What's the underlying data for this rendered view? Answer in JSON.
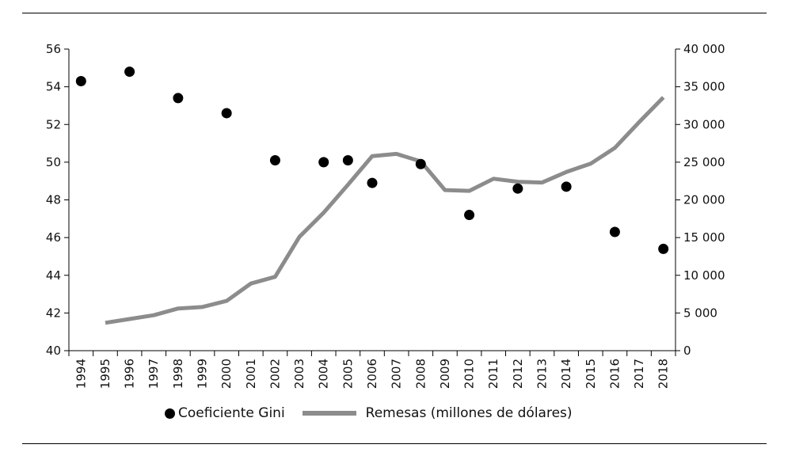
{
  "chart_data": {
    "type": "line",
    "title": "",
    "x": [
      "1994",
      "1995",
      "1996",
      "1997",
      "1998",
      "1999",
      "2000",
      "2001",
      "2002",
      "2003",
      "2004",
      "2005",
      "2006",
      "2007",
      "2008",
      "2009",
      "2010",
      "2011",
      "2012",
      "2013",
      "2014",
      "2015",
      "2016",
      "2017",
      "2018"
    ],
    "y_left": {
      "min": 40,
      "max": 56,
      "ticks": [
        "40",
        "42",
        "44",
        "46",
        "48",
        "50",
        "52",
        "54",
        "56"
      ]
    },
    "y_right": {
      "min": 0,
      "max": 40000,
      "ticks": [
        "0",
        "5 000",
        "10 000",
        "15 000",
        "20 000",
        "25 000",
        "30 000",
        "35 000",
        "40 000"
      ]
    },
    "series": [
      {
        "name": "Coeficiente Gini",
        "type": "scatter",
        "axis": "left",
        "color": "#000000",
        "points": [
          {
            "x": "1994",
            "y": 54.3
          },
          {
            "x": "1996",
            "y": 54.8
          },
          {
            "x": "1998",
            "y": 53.4
          },
          {
            "x": "2000",
            "y": 52.6
          },
          {
            "x": "2002",
            "y": 50.1
          },
          {
            "x": "2004",
            "y": 50.0
          },
          {
            "x": "2005",
            "y": 50.1
          },
          {
            "x": "2006",
            "y": 48.9
          },
          {
            "x": "2008",
            "y": 49.9
          },
          {
            "x": "2010",
            "y": 47.2
          },
          {
            "x": "2012",
            "y": 48.6
          },
          {
            "x": "2014",
            "y": 48.7
          },
          {
            "x": "2016",
            "y": 46.3
          },
          {
            "x": "2018",
            "y": 45.4
          }
        ]
      },
      {
        "name": "Remesas (millones de dólares)",
        "type": "line",
        "axis": "right",
        "color": "#8c8c8c",
        "points": [
          {
            "x": "1995",
            "y": 3700
          },
          {
            "x": "1996",
            "y": 4200
          },
          {
            "x": "1997",
            "y": 4700
          },
          {
            "x": "1998",
            "y": 5600
          },
          {
            "x": "1999",
            "y": 5800
          },
          {
            "x": "2000",
            "y": 6600
          },
          {
            "x": "2001",
            "y": 8900
          },
          {
            "x": "2002",
            "y": 9800
          },
          {
            "x": "2003",
            "y": 15100
          },
          {
            "x": "2004",
            "y": 18300
          },
          {
            "x": "2005",
            "y": 22000
          },
          {
            "x": "2006",
            "y": 25800
          },
          {
            "x": "2007",
            "y": 26100
          },
          {
            "x": "2008",
            "y": 25100
          },
          {
            "x": "2009",
            "y": 21300
          },
          {
            "x": "2010",
            "y": 21200
          },
          {
            "x": "2011",
            "y": 22800
          },
          {
            "x": "2012",
            "y": 22400
          },
          {
            "x": "2013",
            "y": 22300
          },
          {
            "x": "2014",
            "y": 23700
          },
          {
            "x": "2015",
            "y": 24800
          },
          {
            "x": "2016",
            "y": 26900
          },
          {
            "x": "2017",
            "y": 30300
          },
          {
            "x": "2018",
            "y": 33600
          }
        ]
      }
    ],
    "legend": {
      "position": "bottom"
    },
    "grid": false
  }
}
